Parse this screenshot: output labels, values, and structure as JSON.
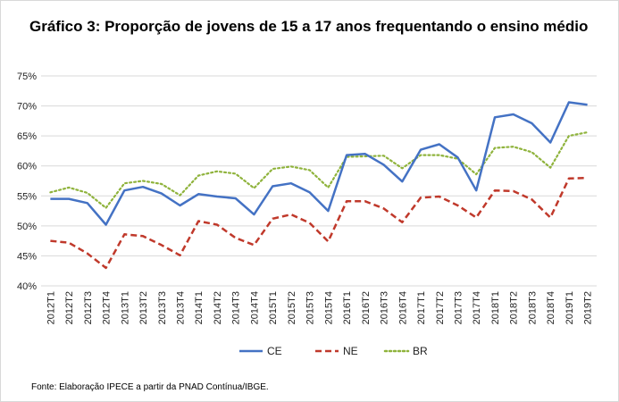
{
  "chart_data": {
    "type": "line",
    "title": "Gráfico 3: Proporção de jovens de 15 a 17 anos frequentando o ensino médio",
    "xlabel": "",
    "ylabel": "",
    "ylim": [
      40,
      75
    ],
    "y_ticks": [
      "40%",
      "45%",
      "50%",
      "55%",
      "60%",
      "65%",
      "70%",
      "75%"
    ],
    "y_tick_values": [
      40,
      45,
      50,
      55,
      60,
      65,
      70,
      75
    ],
    "grid": true,
    "legend_position": "bottom",
    "categories": [
      "2012T1",
      "2012T2",
      "2012T3",
      "2012T4",
      "2013T1",
      "2013T2",
      "2013T3",
      "2013T4",
      "2014T1",
      "2014T2",
      "2014T3",
      "2014T4",
      "2015T1",
      "2015T2",
      "2015T3",
      "2015T4",
      "2016T1",
      "2016T2",
      "2016T3",
      "2016T4",
      "2017T1",
      "2017T2",
      "2017T3",
      "2017T4",
      "2018T1",
      "2018T2",
      "2018T3",
      "2018T4",
      "2019T1",
      "2019T2"
    ],
    "series": [
      {
        "name": "CE",
        "color": "#4472c4",
        "style": "solid",
        "values": [
          54.5,
          54.5,
          53.8,
          50.2,
          55.9,
          56.5,
          55.4,
          53.4,
          55.3,
          54.9,
          54.6,
          51.9,
          56.6,
          57.1,
          55.6,
          52.5,
          61.8,
          62.0,
          60.2,
          57.4,
          62.7,
          63.6,
          61.4,
          55.9,
          68.1,
          68.6,
          67.1,
          63.9,
          70.6,
          70.2
        ]
      },
      {
        "name": "NE",
        "color": "#c0392b",
        "style": "dashed",
        "values": [
          47.5,
          47.2,
          45.4,
          43.0,
          48.6,
          48.3,
          46.8,
          45.1,
          50.8,
          50.2,
          48.0,
          46.8,
          51.2,
          51.9,
          50.5,
          47.4,
          54.1,
          54.1,
          52.9,
          50.6,
          54.7,
          54.9,
          53.4,
          51.4,
          55.9,
          55.8,
          54.4,
          51.4,
          57.9,
          58.0
        ]
      },
      {
        "name": "BR",
        "color": "#8fb33c",
        "style": "dotted",
        "values": [
          55.6,
          56.4,
          55.5,
          53.0,
          57.1,
          57.5,
          57.0,
          55.1,
          58.4,
          59.1,
          58.7,
          56.3,
          59.5,
          59.9,
          59.3,
          56.4,
          61.5,
          61.6,
          61.7,
          59.6,
          61.8,
          61.8,
          61.2,
          58.6,
          63.0,
          63.2,
          62.3,
          59.7,
          65.0,
          65.6
        ]
      }
    ]
  },
  "footer": {
    "source": "Fonte: Elaboração IPECE a partir da PNAD Contínua/IBGE."
  }
}
